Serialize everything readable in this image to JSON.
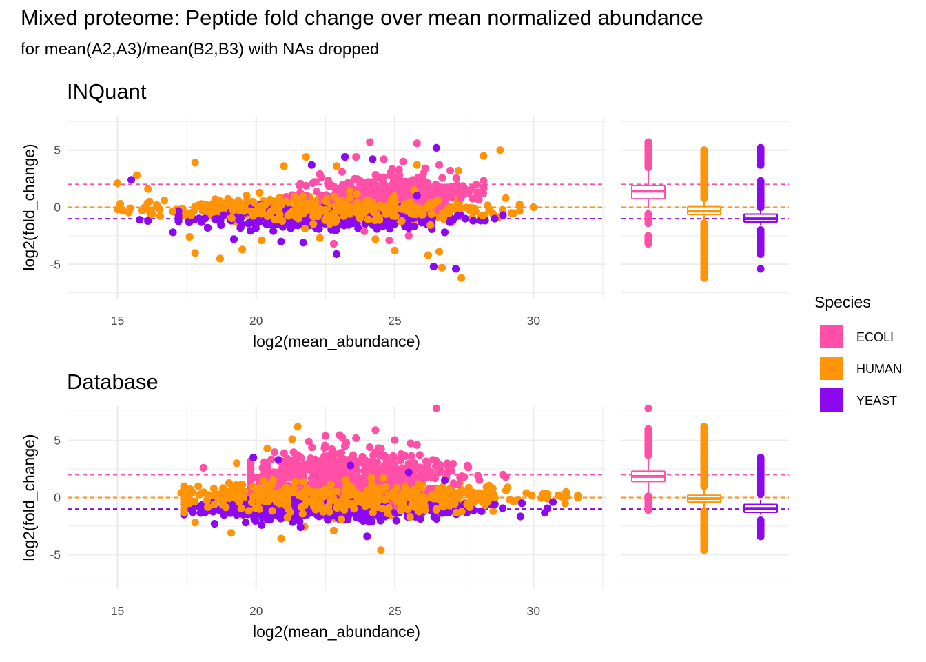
{
  "title": "Mixed proteome: Peptide fold change over mean normalized abundance",
  "subtitle": "for mean(A2,A3)/mean(B2,B3) with NAs dropped",
  "legend": {
    "title": "Species",
    "position": "right",
    "items": [
      {
        "label": "ECOLI",
        "color": "#FF4FA7"
      },
      {
        "label": "HUMAN",
        "color": "#FF9408"
      },
      {
        "label": "YEAST",
        "color": "#8B08F0"
      }
    ]
  },
  "chart_data": [
    {
      "type": "scatter",
      "panel_title": "INQuant",
      "xlabel": "log2(mean_abundance)",
      "ylabel": "log2(fold_change)",
      "xlim": [
        13.2,
        32.6
      ],
      "ylim": [
        -8,
        8
      ],
      "x_ticks": [
        15,
        20,
        25,
        30
      ],
      "y_ticks": [
        -5,
        0,
        5
      ],
      "y_tick_labels": [
        "-5",
        "0",
        "5"
      ],
      "grid": true,
      "reference_lines": [
        {
          "species": "ECOLI",
          "y": 2
        },
        {
          "species": "HUMAN",
          "y": 0
        },
        {
          "species": "YEAST",
          "y": -1
        }
      ],
      "series": [
        {
          "name": "ECOLI",
          "color": "#FF4FA7",
          "cluster": {
            "n": 340,
            "x_range": [
              20.8,
              28.2
            ],
            "x_center": 24.8,
            "y_mean": 1.4,
            "y_sd": 0.75
          },
          "points": [
            [
              24.1,
              5.7
            ],
            [
              25.8,
              5.6
            ],
            [
              23.6,
              4.4
            ],
            [
              24.6,
              4.2
            ],
            [
              23.1,
              3.1
            ],
            [
              26.6,
              3.7
            ],
            [
              25.3,
              4.0
            ],
            [
              22.3,
              2.9
            ],
            [
              23.9,
              -2.1
            ],
            [
              24.8,
              -2.9
            ],
            [
              22.8,
              -3.2
            ],
            [
              25.5,
              -2.5
            ],
            [
              26.1,
              3.4
            ],
            [
              27.0,
              3.2
            ]
          ]
        },
        {
          "name": "HUMAN",
          "color": "#FF9408",
          "cluster": {
            "n": 700,
            "x_range": [
              15.2,
              29.5
            ],
            "x_center": 22.5,
            "y_mean": -0.2,
            "y_sd": 0.6
          },
          "points": [
            [
              15.0,
              2.1
            ],
            [
              15.7,
              2.8
            ],
            [
              17.8,
              3.9
            ],
            [
              21.8,
              4.4
            ],
            [
              22.9,
              3.6
            ],
            [
              25.8,
              3.7
            ],
            [
              28.2,
              4.5
            ],
            [
              28.8,
              5.0
            ],
            [
              27.3,
              3.2
            ],
            [
              21.0,
              3.6
            ],
            [
              17.6,
              -2.6
            ],
            [
              17.8,
              -4.0
            ],
            [
              18.7,
              -4.5
            ],
            [
              19.5,
              -3.7
            ],
            [
              20.2,
              -2.9
            ],
            [
              22.3,
              -2.7
            ],
            [
              24.3,
              -2.8
            ],
            [
              25.0,
              -3.8
            ],
            [
              26.2,
              -4.2
            ],
            [
              26.6,
              -3.9
            ],
            [
              26.7,
              -5.3
            ],
            [
              27.4,
              -6.2
            ],
            [
              30.0,
              0.0
            ],
            [
              29.2,
              -0.5
            ],
            [
              29.0,
              0.8
            ],
            [
              16.1,
              1.6
            ],
            [
              16.2,
              -0.3
            ],
            [
              15.1,
              0.3
            ],
            [
              15.0,
              -0.2
            ]
          ]
        },
        {
          "name": "YEAST",
          "color": "#8B08F0",
          "cluster": {
            "n": 300,
            "x_range": [
              17.2,
              29.0
            ],
            "x_center": 22.5,
            "y_mean": -1.0,
            "y_sd": 0.55
          },
          "points": [
            [
              15.8,
              -1.1
            ],
            [
              16.1,
              -1.2
            ],
            [
              15.5,
              2.4
            ],
            [
              22.0,
              3.7
            ],
            [
              23.2,
              4.4
            ],
            [
              24.2,
              4.2
            ],
            [
              26.5,
              5.2
            ],
            [
              22.9,
              -4.1
            ],
            [
              26.4,
              -5.2
            ],
            [
              27.2,
              -5.4
            ],
            [
              20.9,
              -3.0
            ],
            [
              21.7,
              -3.1
            ],
            [
              26.8,
              -2.2
            ],
            [
              28.6,
              -1.0
            ],
            [
              28.9,
              -0.7
            ],
            [
              17.0,
              -2.2
            ],
            [
              19.2,
              -2.8
            ],
            [
              25.8,
              1.0
            ]
          ]
        }
      ],
      "boxplots": [
        {
          "species": "ECOLI",
          "q1": 0.75,
          "median": 1.4,
          "q3": 1.9,
          "whisker_low": -0.1,
          "whisker_high": 3.3,
          "outliers": [
            5.7,
            5.6,
            5.3,
            4.4,
            4.2,
            4.0,
            3.7,
            3.5,
            -0.6,
            -1.0,
            -1.4,
            -2.5,
            -2.9,
            -3.2
          ]
        },
        {
          "species": "HUMAN",
          "q1": -0.65,
          "median": -0.35,
          "q3": 0.05,
          "whisker_low": -1.2,
          "whisker_high": 0.6,
          "outliers": [
            5.0,
            4.5,
            4.4,
            4.0,
            3.9,
            3.7,
            3.6,
            3.2,
            3.0,
            2.8,
            2.5,
            2.2,
            2.0,
            1.8,
            1.5,
            1.2,
            1.0,
            0.8,
            -1.4,
            -1.7,
            -2.0,
            -2.3,
            -2.6,
            -2.9,
            -3.2,
            -3.6,
            -3.9,
            -4.2,
            -4.5,
            -5.3,
            -5.7,
            -6.2
          ]
        },
        {
          "species": "YEAST",
          "q1": -1.3,
          "median": -1.0,
          "q3": -0.6,
          "whisker_low": -1.6,
          "whisker_high": -0.2,
          "outliers": [
            5.2,
            4.4,
            4.0,
            3.7,
            2.3,
            2.0,
            1.7,
            1.3,
            1.0,
            0.6,
            0.3,
            0.0,
            -2.0,
            -2.4,
            -2.8,
            -3.0,
            -3.4,
            -4.1,
            -5.4
          ]
        }
      ]
    },
    {
      "type": "scatter",
      "panel_title": "Database",
      "xlabel": "log2(mean_abundance)",
      "ylabel": "log2(fold_change)",
      "xlim": [
        13.2,
        32.6
      ],
      "ylim": [
        -8,
        8
      ],
      "x_ticks": [
        15,
        20,
        25,
        30
      ],
      "y_ticks": [
        -5,
        0,
        5
      ],
      "y_tick_labels": [
        "-5",
        "0",
        "5"
      ],
      "grid": true,
      "reference_lines": [
        {
          "species": "ECOLI",
          "y": 2
        },
        {
          "species": "HUMAN",
          "y": 0
        },
        {
          "species": "YEAST",
          "y": -1
        }
      ],
      "series": [
        {
          "name": "ECOLI",
          "color": "#FF4FA7",
          "cluster": {
            "n": 520,
            "x_range": [
              19.8,
              29.0
            ],
            "x_center": 23.5,
            "y_mean": 2.0,
            "y_sd": 1.2
          },
          "points": [
            [
              26.5,
              7.8
            ],
            [
              24.3,
              5.9
            ],
            [
              23.6,
              5.2
            ],
            [
              22.5,
              5.4
            ],
            [
              21.9,
              4.9
            ],
            [
              25.8,
              4.6
            ],
            [
              18.1,
              2.6
            ],
            [
              28.9,
              2.0
            ],
            [
              27.5,
              1.8
            ],
            [
              28.0,
              1.9
            ]
          ]
        },
        {
          "name": "HUMAN",
          "color": "#FF9408",
          "cluster": {
            "n": 900,
            "x_range": [
              17.4,
              31.6
            ],
            "x_center": 23.0,
            "y_mean": 0.0,
            "y_sd": 0.75
          },
          "points": [
            [
              21.5,
              6.2
            ],
            [
              21.3,
              5.1
            ],
            [
              20.4,
              4.3
            ],
            [
              19.3,
              3.0
            ],
            [
              24.5,
              -4.6
            ],
            [
              22.8,
              -2.9
            ],
            [
              20.9,
              -3.6
            ],
            [
              19.1,
              -3.1
            ],
            [
              17.8,
              -2.2
            ],
            [
              17.4,
              -1.3
            ],
            [
              31.6,
              0.0
            ],
            [
              31.2,
              0.1
            ],
            [
              30.5,
              -0.1
            ],
            [
              30.9,
              0.2
            ],
            [
              17.3,
              0.4
            ],
            [
              17.6,
              -0.5
            ]
          ]
        },
        {
          "name": "YEAST",
          "color": "#8B08F0",
          "cluster": {
            "n": 520,
            "x_range": [
              17.4,
              30.5
            ],
            "x_center": 22.5,
            "y_mean": -1.0,
            "y_sd": 0.5
          },
          "points": [
            [
              19.9,
              3.5
            ],
            [
              20.8,
              3.3
            ],
            [
              24.0,
              -3.4
            ],
            [
              21.6,
              -2.6
            ],
            [
              20.2,
              -2.4
            ],
            [
              18.5,
              -2.3
            ],
            [
              30.7,
              -0.4
            ],
            [
              23.4,
              2.8
            ],
            [
              25.5,
              2.2
            ],
            [
              26.8,
              1.5
            ]
          ]
        }
      ],
      "boxplots": [
        {
          "species": "ECOLI",
          "q1": 1.4,
          "median": 1.85,
          "q3": 2.3,
          "whisker_low": 0.4,
          "whisker_high": 3.4,
          "outliers": [
            7.8,
            6.0,
            5.8,
            5.5,
            5.2,
            5.0,
            4.8,
            4.5,
            4.2,
            4.0,
            3.7,
            0.1,
            -0.2,
            -0.5,
            -0.8,
            -1.1
          ]
        },
        {
          "species": "HUMAN",
          "q1": -0.4,
          "median": -0.1,
          "q3": 0.2,
          "whisker_low": -0.9,
          "whisker_high": 0.8,
          "outliers": [
            6.2,
            5.3,
            5.0,
            4.6,
            4.3,
            4.0,
            3.7,
            3.4,
            3.1,
            2.8,
            2.5,
            2.2,
            1.9,
            1.6,
            1.3,
            1.0,
            -1.2,
            -1.5,
            -1.8,
            -2.1,
            -2.4,
            -2.7,
            -3.0,
            -3.3,
            -3.6,
            -4.0,
            -4.6
          ]
        },
        {
          "species": "YEAST",
          "q1": -1.3,
          "median": -0.95,
          "q3": -0.6,
          "whisker_low": -1.5,
          "whisker_high": -0.2,
          "outliers": [
            3.5,
            3.2,
            2.9,
            2.6,
            2.3,
            2.0,
            1.7,
            1.4,
            1.1,
            0.8,
            0.5,
            0.3,
            -2.0,
            -2.2,
            -2.5,
            -2.7,
            -3.0,
            -3.4
          ]
        }
      ]
    }
  ]
}
